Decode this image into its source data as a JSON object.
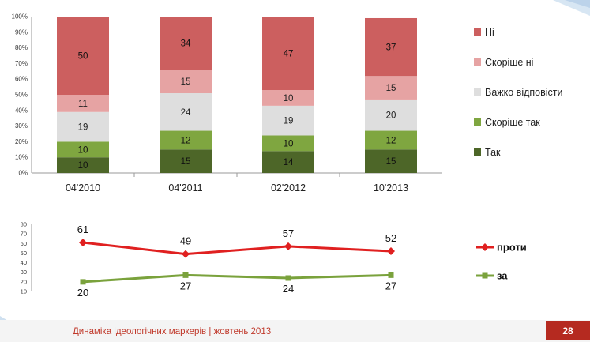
{
  "footer": {
    "title": "Динаміка ідеологічних маркерів",
    "separator": "|",
    "date": "жовтень 2013",
    "page_number": "28"
  },
  "colors": {
    "ni": "#cc5f5f",
    "skorishe_ni": "#e6a3a3",
    "vazhko": "#dedede",
    "skorishe_tak": "#7fa640",
    "tak": "#4d6628",
    "proty": "#e02020",
    "za": "#7aa23c",
    "footer_text": "#c0392b",
    "page_badge": "#b52a20"
  },
  "chart_data": [
    {
      "type": "bar",
      "stacked": true,
      "categories": [
        "04'2010",
        "04'2011",
        "02'2012",
        "10'2013"
      ],
      "ylim": [
        0,
        100
      ],
      "y_ticks": [
        "0%",
        "10%",
        "20%",
        "30%",
        "40%",
        "50%",
        "60%",
        "70%",
        "80%",
        "90%",
        "100%"
      ],
      "legend_position": "right",
      "series": [
        {
          "name": "Так",
          "color_key": "tak",
          "values": [
            10,
            15,
            14,
            15
          ]
        },
        {
          "name": "Скоріше так",
          "color_key": "skorishe_tak",
          "values": [
            10,
            12,
            10,
            12
          ]
        },
        {
          "name": "Важко відповісти",
          "color_key": "vazhko",
          "values": [
            19,
            24,
            19,
            20
          ]
        },
        {
          "name": "Скоріше ні",
          "color_key": "skorishe_ni",
          "values": [
            11,
            15,
            10,
            15
          ]
        },
        {
          "name": "Ні",
          "color_key": "ni",
          "values": [
            50,
            34,
            47,
            37
          ]
        }
      ],
      "legend_order": [
        "Ні",
        "Скоріше ні",
        "Важко відповісти",
        "Скоріше так",
        "Так"
      ]
    },
    {
      "type": "line",
      "categories": [
        "04'2010",
        "04'2011",
        "02'2012",
        "10'2013"
      ],
      "ylim": [
        10,
        80
      ],
      "y_ticks": [
        "10",
        "20",
        "30",
        "40",
        "50",
        "60",
        "70",
        "80"
      ],
      "legend_position": "right",
      "series": [
        {
          "name": "проти",
          "color_key": "proty",
          "marker": "diamond",
          "values": [
            61,
            49,
            57,
            52
          ]
        },
        {
          "name": "за",
          "color_key": "za",
          "marker": "square",
          "values": [
            20,
            27,
            24,
            27
          ]
        }
      ]
    }
  ]
}
